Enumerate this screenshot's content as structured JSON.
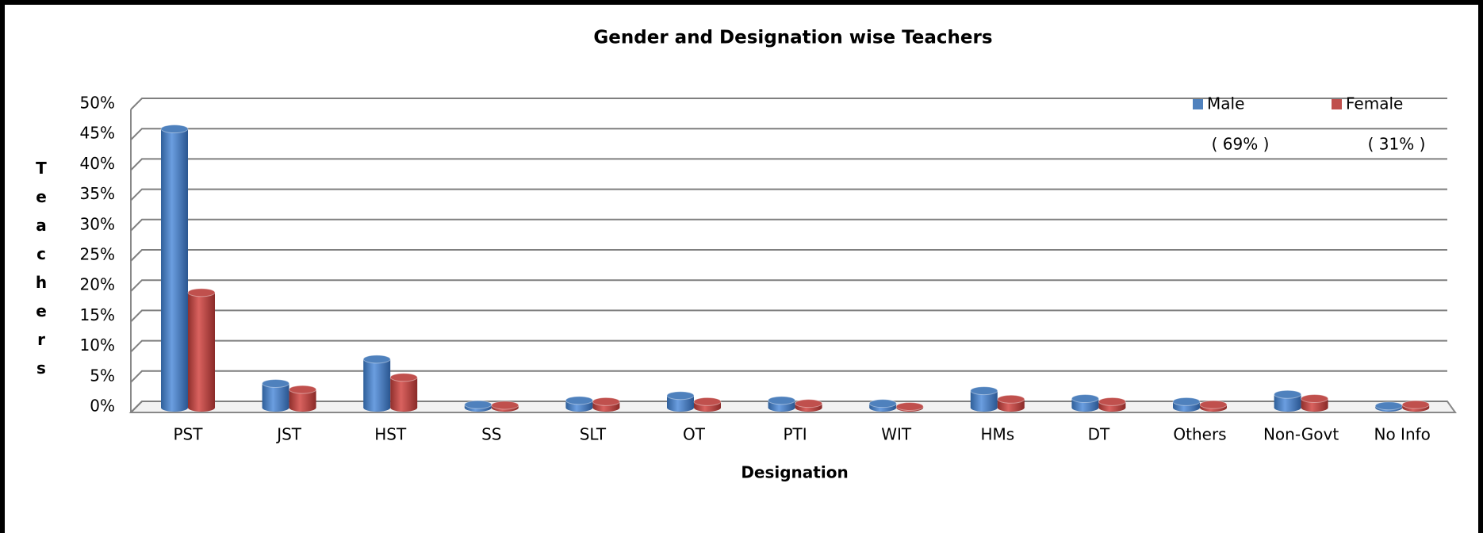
{
  "chart_data": {
    "type": "bar",
    "title": "Gender and Designation wise Teachers",
    "x_label": "Designation",
    "y_label": "Teachers",
    "categories": [
      "PST",
      "JST",
      "HST",
      "SS",
      "SLT",
      "OT",
      "PTI",
      "WIT",
      "HMs",
      "DT",
      "Others",
      "Non-Govt",
      "No Info"
    ],
    "series": [
      {
        "name": "Male",
        "color": "#4f81bd",
        "values": [
          46,
          4,
          8,
          0.5,
          1.2,
          2,
          1.2,
          0.7,
          2.8,
          1.5,
          1,
          2.2,
          0.3
        ]
      },
      {
        "name": "Female",
        "color": "#c0504d",
        "values": [
          19,
          3,
          5,
          0.4,
          1,
          1,
          0.7,
          0.2,
          1.4,
          1,
          0.5,
          1.5,
          0.5
        ]
      }
    ],
    "annotations": [
      "( 69% )",
      "( 31% )"
    ],
    "ylim": [
      0,
      50
    ],
    "yticks": [
      {
        "value": 0,
        "label": "0%"
      },
      {
        "value": 5,
        "label": "5%"
      },
      {
        "value": 10,
        "label": "10%"
      },
      {
        "value": 15,
        "label": "15%"
      },
      {
        "value": 20,
        "label": "20%"
      },
      {
        "value": 25,
        "label": "25%"
      },
      {
        "value": 30,
        "label": "30%"
      },
      {
        "value": 35,
        "label": "35%"
      },
      {
        "value": 40,
        "label": "40%"
      },
      {
        "value": 45,
        "label": "45%"
      },
      {
        "value": 50,
        "label": "50%"
      }
    ],
    "grid": true,
    "legend": "top-right"
  }
}
